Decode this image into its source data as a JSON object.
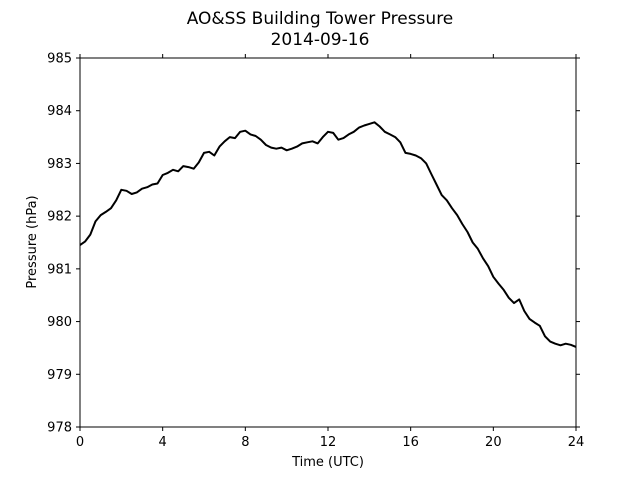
{
  "chart_data": {
    "type": "line",
    "title": "AO&SS Building Tower Pressure",
    "subtitle": "2014-09-16",
    "xlabel": "Time (UTC)",
    "ylabel": "Pressure (hPa)",
    "xlim": [
      0,
      24
    ],
    "ylim": [
      978,
      985
    ],
    "xticks": [
      0,
      4,
      8,
      12,
      16,
      20,
      24
    ],
    "yticks": [
      978,
      979,
      980,
      981,
      982,
      983,
      984,
      985
    ],
    "grid": false,
    "series": [
      {
        "color": "#000000",
        "x": [
          0,
          0.25,
          0.5,
          0.75,
          1.0,
          1.25,
          1.5,
          1.75,
          2.0,
          2.25,
          2.5,
          2.75,
          3.0,
          3.25,
          3.5,
          3.75,
          4.0,
          4.25,
          4.5,
          4.75,
          5.0,
          5.25,
          5.5,
          5.75,
          6.0,
          6.25,
          6.5,
          6.75,
          7.0,
          7.25,
          7.5,
          7.75,
          8.0,
          8.25,
          8.5,
          8.75,
          9.0,
          9.25,
          9.5,
          9.75,
          10.0,
          10.25,
          10.5,
          10.75,
          11.0,
          11.25,
          11.5,
          11.75,
          12.0,
          12.25,
          12.5,
          12.75,
          13.0,
          13.25,
          13.5,
          13.75,
          14.0,
          14.25,
          14.5,
          14.75,
          15.0,
          15.25,
          15.5,
          15.75,
          16.0,
          16.25,
          16.5,
          16.75,
          17.0,
          17.25,
          17.5,
          17.75,
          18.0,
          18.25,
          18.5,
          18.75,
          19.0,
          19.25,
          19.5,
          19.75,
          20.0,
          20.25,
          20.5,
          20.75,
          21.0,
          21.25,
          21.5,
          21.75,
          22.0,
          22.25,
          22.5,
          22.75,
          23.0,
          23.25,
          23.5,
          23.75,
          24.0
        ],
        "y": [
          981.45,
          981.52,
          981.65,
          981.9,
          982.02,
          982.08,
          982.15,
          982.3,
          982.5,
          982.48,
          982.42,
          982.45,
          982.52,
          982.55,
          982.6,
          982.62,
          982.78,
          982.82,
          982.88,
          982.85,
          982.95,
          982.93,
          982.9,
          983.02,
          983.2,
          983.22,
          983.15,
          983.32,
          983.42,
          983.5,
          983.48,
          983.6,
          983.62,
          983.55,
          983.52,
          983.45,
          983.35,
          983.3,
          983.28,
          983.3,
          983.25,
          983.28,
          983.32,
          983.38,
          983.4,
          983.42,
          983.38,
          983.5,
          983.6,
          983.58,
          983.45,
          983.48,
          983.55,
          983.6,
          983.68,
          983.72,
          983.75,
          983.78,
          983.7,
          983.6,
          983.55,
          983.5,
          983.4,
          983.2,
          983.18,
          983.15,
          983.1,
          983.0,
          982.8,
          982.6,
          982.4,
          982.3,
          982.15,
          982.02,
          981.85,
          981.7,
          981.5,
          981.38,
          981.2,
          981.05,
          980.85,
          980.72,
          980.6,
          980.45,
          980.35,
          980.42,
          980.2,
          980.05,
          979.98,
          979.92,
          979.72,
          979.62,
          979.58,
          979.55,
          979.58,
          979.56,
          979.52
        ]
      }
    ]
  }
}
